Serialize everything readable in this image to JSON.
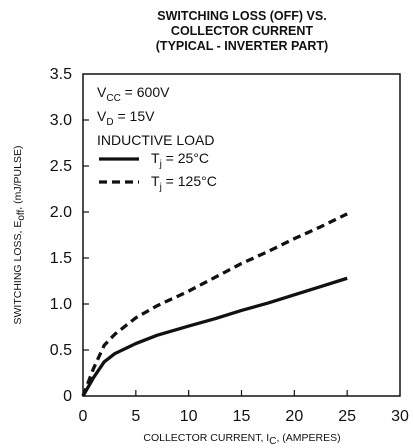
{
  "chart_data": {
    "type": "line",
    "title_lines": [
      "SWITCHING LOSS (OFF) VS.",
      "COLLECTOR CURRENT",
      "(TYPICAL - INVERTER PART)"
    ],
    "xlabel": {
      "main": "COLLECTOR CURRENT, I",
      "sub": "C",
      "rest": ", (AMPERES)"
    },
    "ylabel": {
      "main": "SWITCHING LOSS, E",
      "sub": "off",
      "rest": ", (mJ/PULSE)"
    },
    "xlim": [
      0,
      30
    ],
    "ylim": [
      0,
      3.5
    ],
    "x_ticks": [
      "0",
      "5",
      "10",
      "15",
      "20",
      "25",
      "30"
    ],
    "y_ticks": [
      "0",
      "0.5",
      "1.0",
      "1.5",
      "2.0",
      "2.5",
      "3.0",
      "3.5"
    ],
    "conditions": [
      {
        "main": "V",
        "sub": "CC",
        "rest": " = 600V"
      },
      {
        "main": "V",
        "sub": "D",
        "rest": " = 15V"
      },
      {
        "main": "INDUCTIVE LOAD",
        "sub": "",
        "rest": ""
      }
    ],
    "series": [
      {
        "name": {
          "main": "T",
          "sub": "j",
          "rest": " = 25°C"
        },
        "style": "solid",
        "x": [
          0,
          1,
          2,
          3,
          5,
          7,
          10,
          12.5,
          15,
          17.5,
          20,
          22.5,
          25
        ],
        "y": [
          0,
          0.2,
          0.37,
          0.46,
          0.57,
          0.66,
          0.76,
          0.84,
          0.93,
          1.01,
          1.1,
          1.19,
          1.28
        ]
      },
      {
        "name": {
          "main": "T",
          "sub": "j",
          "rest": " = 125°C"
        },
        "style": "dashed",
        "x": [
          0,
          1,
          2,
          3,
          5,
          7,
          10,
          12.5,
          15,
          17.5,
          20,
          22.5,
          25
        ],
        "y": [
          0,
          0.3,
          0.55,
          0.67,
          0.85,
          0.98,
          1.14,
          1.29,
          1.44,
          1.57,
          1.71,
          1.84,
          1.98
        ]
      }
    ],
    "colors": {
      "line": "#111111",
      "axis": "#111111",
      "background": "#ffffff"
    },
    "grid": false
  }
}
